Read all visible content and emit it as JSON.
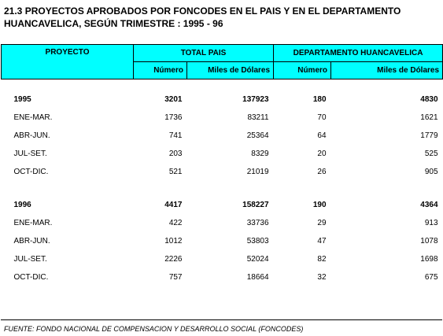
{
  "title": {
    "line1": "21.3 PROYECTOS APROBADOS POR FONCODES EN EL PAIS Y EN EL DEPARTAMENTO",
    "line2": "HUANCAVELICA, SEGÚN TRIMESTRE : 1995 - 96"
  },
  "header": {
    "proyecto": "PROYECTO",
    "total_pais": "TOTAL PAIS",
    "departamento": "DEPARTAMENTO HUANCAVELICA",
    "numero": "Número",
    "miles": "Miles de Dólares"
  },
  "rows": [
    {
      "label": "1995",
      "num_pais": "3201",
      "miles_pais": "137923",
      "num_dep": "180",
      "miles_dep": "4830"
    },
    {
      "label": "ENE-MAR.",
      "num_pais": "1736",
      "miles_pais": "83211",
      "num_dep": "70",
      "miles_dep": "1621"
    },
    {
      "label": "ABR-JUN.",
      "num_pais": "741",
      "miles_pais": "25364",
      "num_dep": "64",
      "miles_dep": "1779"
    },
    {
      "label": "JUL-SET.",
      "num_pais": "203",
      "miles_pais": "8329",
      "num_dep": "20",
      "miles_dep": "525"
    },
    {
      "label": "OCT-DIC.",
      "num_pais": "521",
      "miles_pais": "21019",
      "num_dep": "26",
      "miles_dep": "905"
    },
    {
      "label": "1996",
      "num_pais": "4417",
      "miles_pais": "158227",
      "num_dep": "190",
      "miles_dep": "4364"
    },
    {
      "label": "ENE-MAR.",
      "num_pais": "422",
      "miles_pais": "33736",
      "num_dep": "29",
      "miles_dep": "913"
    },
    {
      "label": "ABR-JUN.",
      "num_pais": "1012",
      "miles_pais": "53803",
      "num_dep": "47",
      "miles_dep": "1078"
    },
    {
      "label": "JUL-SET.",
      "num_pais": "2226",
      "miles_pais": "52024",
      "num_dep": "82",
      "miles_dep": "1698"
    },
    {
      "label": "OCT-DIC.",
      "num_pais": "757",
      "miles_pais": "18664",
      "num_dep": "32",
      "miles_dep": "675"
    }
  ],
  "source": "FUENTE: FONDO NACIONAL DE COMPENSACION Y DESARROLLO SOCIAL (FONCODES)"
}
